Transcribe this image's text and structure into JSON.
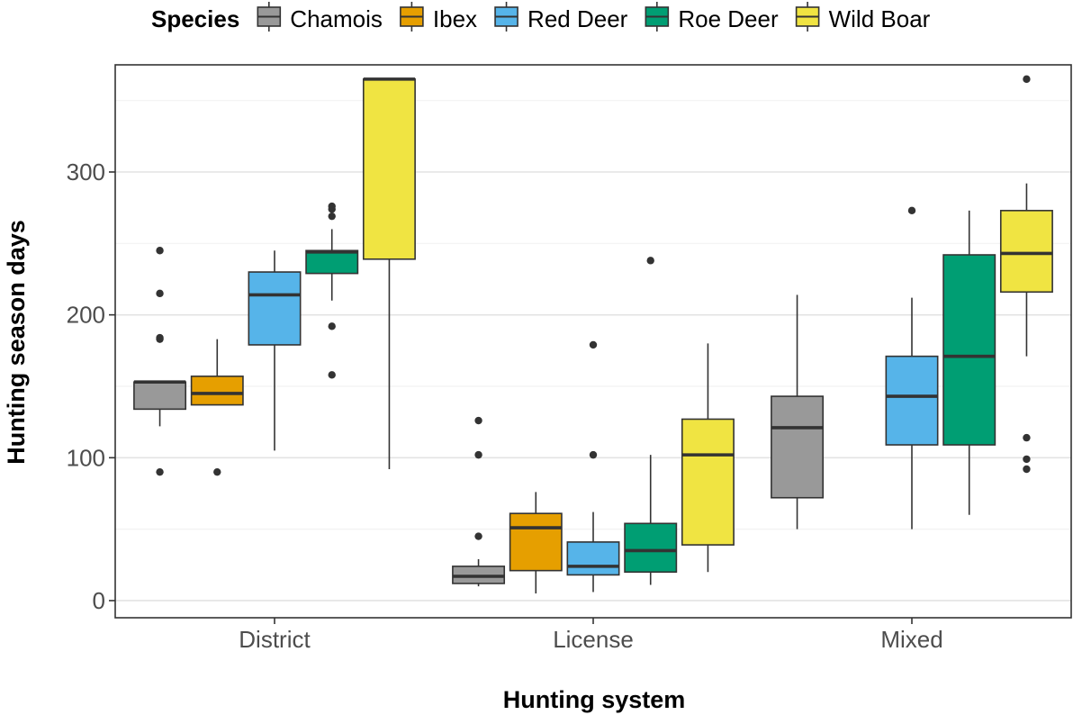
{
  "chart_data": {
    "type": "boxplot",
    "xlabel": "Hunting system",
    "ylabel": "Hunting season days",
    "ylim": [
      -12,
      375
    ],
    "yticks": [
      0,
      100,
      200,
      300
    ],
    "grid": true,
    "legend": {
      "title": "Species",
      "placement": "top"
    },
    "categories": [
      "District",
      "License",
      "Mixed"
    ],
    "series": [
      {
        "name": "Chamois",
        "color": "#999999",
        "boxes": [
          {
            "category": "District",
            "whisker_low": 122,
            "q1": 134,
            "median": 153,
            "q3": 153,
            "whisker_high": 153,
            "outliers": [
              90,
              183,
              184,
              215,
              245
            ]
          },
          {
            "category": "License",
            "whisker_low": 10,
            "q1": 12,
            "median": 17,
            "q3": 24,
            "whisker_high": 29,
            "outliers": [
              45,
              102,
              126
            ]
          },
          {
            "category": "Mixed",
            "whisker_low": 50,
            "q1": 72,
            "median": 121,
            "q3": 143,
            "whisker_high": 214,
            "outliers": []
          }
        ]
      },
      {
        "name": "Ibex",
        "color": "#E69F00",
        "boxes": [
          {
            "category": "District",
            "whisker_low": 137,
            "q1": 137,
            "median": 145,
            "q3": 157,
            "whisker_high": 183,
            "outliers": [
              90
            ]
          },
          {
            "category": "License",
            "whisker_low": 5,
            "q1": 21,
            "median": 51,
            "q3": 61,
            "whisker_high": 76,
            "outliers": []
          }
        ]
      },
      {
        "name": "Red Deer",
        "color": "#56B4E9",
        "boxes": [
          {
            "category": "District",
            "whisker_low": 105,
            "q1": 179,
            "median": 214,
            "q3": 230,
            "whisker_high": 245,
            "outliers": []
          },
          {
            "category": "License",
            "whisker_low": 6,
            "q1": 18,
            "median": 24,
            "q3": 41,
            "whisker_high": 62,
            "outliers": [
              102,
              179
            ]
          },
          {
            "category": "Mixed",
            "whisker_low": 50,
            "q1": 109,
            "median": 143,
            "q3": 171,
            "whisker_high": 212,
            "outliers": [
              273
            ]
          }
        ]
      },
      {
        "name": "Roe Deer",
        "color": "#009E73",
        "boxes": [
          {
            "category": "District",
            "whisker_low": 210,
            "q1": 229,
            "median": 244,
            "q3": 245,
            "whisker_high": 260,
            "outliers": [
              158,
              192,
              269,
              274,
              276
            ]
          },
          {
            "category": "License",
            "whisker_low": 11,
            "q1": 20,
            "median": 35,
            "q3": 54,
            "whisker_high": 102,
            "outliers": [
              238
            ]
          },
          {
            "category": "Mixed",
            "whisker_low": 60,
            "q1": 109,
            "median": 171,
            "q3": 242,
            "whisker_high": 273,
            "outliers": []
          }
        ]
      },
      {
        "name": "Wild Boar",
        "color": "#F0E442",
        "boxes": [
          {
            "category": "District",
            "whisker_low": 92,
            "q1": 239,
            "median": 365,
            "q3": 365,
            "whisker_high": 365,
            "outliers": []
          },
          {
            "category": "License",
            "whisker_low": 20,
            "q1": 39,
            "median": 102,
            "q3": 127,
            "whisker_high": 180,
            "outliers": []
          },
          {
            "category": "Mixed",
            "whisker_low": 171,
            "q1": 216,
            "median": 243,
            "q3": 273,
            "whisker_high": 292,
            "outliers": [
              92,
              99,
              114,
              365
            ]
          }
        ]
      }
    ]
  }
}
